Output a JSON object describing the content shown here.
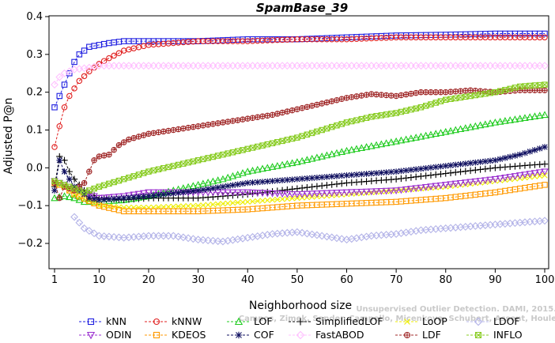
{
  "chart_data": {
    "type": "line",
    "title": "SpamBase_39",
    "xlabel": "Neighborhood size",
    "ylabel": "Adjusted P@n",
    "xlim": [
      1,
      100
    ],
    "ylim": [
      -0.25,
      0.4
    ],
    "xticks": [
      1,
      10,
      20,
      30,
      40,
      50,
      60,
      70,
      80,
      90,
      100
    ],
    "yticks": [
      -0.2,
      -0.1,
      0.0,
      0.1,
      0.2,
      0.3,
      0.4
    ],
    "ytick_labels": [
      "−0.2",
      "−0.1",
      "0.0",
      "0.1",
      "0.2",
      "0.3",
      "0.4"
    ],
    "grid": false,
    "legend_position": "bottom",
    "watermark": [
      "Unsupervised Outlier Detection. DAMI, 2015.",
      "Campos, Zimek, Sander, Campello, Micenkova, Schubert, Assent, Houle"
    ],
    "series": [
      {
        "name": "kNN",
        "color": "#1f1fe0",
        "marker": "square",
        "points": [
          [
            1,
            0.16
          ],
          [
            2,
            0.19
          ],
          [
            3,
            0.22
          ],
          [
            4,
            0.25
          ],
          [
            5,
            0.28
          ],
          [
            6,
            0.3
          ],
          [
            8,
            0.32
          ],
          [
            10,
            0.325
          ],
          [
            12,
            0.33
          ],
          [
            15,
            0.335
          ],
          [
            20,
            0.335
          ],
          [
            30,
            0.335
          ],
          [
            40,
            0.34
          ],
          [
            50,
            0.34
          ],
          [
            60,
            0.345
          ],
          [
            70,
            0.35
          ],
          [
            80,
            0.352
          ],
          [
            90,
            0.355
          ],
          [
            100,
            0.355
          ]
        ]
      },
      {
        "name": "kNNW",
        "color": "#e02020",
        "marker": "circle",
        "points": [
          [
            1,
            0.055
          ],
          [
            2,
            0.11
          ],
          [
            3,
            0.16
          ],
          [
            4,
            0.19
          ],
          [
            5,
            0.21
          ],
          [
            6,
            0.23
          ],
          [
            8,
            0.255
          ],
          [
            10,
            0.275
          ],
          [
            12,
            0.29
          ],
          [
            15,
            0.31
          ],
          [
            20,
            0.325
          ],
          [
            25,
            0.33
          ],
          [
            30,
            0.335
          ],
          [
            40,
            0.335
          ],
          [
            50,
            0.34
          ],
          [
            60,
            0.34
          ],
          [
            70,
            0.345
          ],
          [
            80,
            0.345
          ],
          [
            90,
            0.345
          ],
          [
            100,
            0.345
          ]
        ]
      },
      {
        "name": "LOF",
        "color": "#22cc22",
        "marker": "triangle",
        "points": [
          [
            1,
            -0.08
          ],
          [
            3,
            -0.075
          ],
          [
            5,
            -0.08
          ],
          [
            7,
            -0.09
          ],
          [
            10,
            -0.09
          ],
          [
            15,
            -0.085
          ],
          [
            20,
            -0.075
          ],
          [
            25,
            -0.06
          ],
          [
            30,
            -0.045
          ],
          [
            35,
            -0.03
          ],
          [
            40,
            -0.01
          ],
          [
            50,
            0.015
          ],
          [
            60,
            0.045
          ],
          [
            70,
            0.07
          ],
          [
            80,
            0.095
          ],
          [
            90,
            0.12
          ],
          [
            100,
            0.14
          ]
        ]
      },
      {
        "name": "SimplifiedLOF",
        "color": "#000000",
        "marker": "plus",
        "points": [
          [
            1,
            -0.05
          ],
          [
            2,
            0.03
          ],
          [
            3,
            0.02
          ],
          [
            4,
            -0.01
          ],
          [
            5,
            -0.03
          ],
          [
            7,
            -0.06
          ],
          [
            10,
            -0.08
          ],
          [
            15,
            -0.085
          ],
          [
            20,
            -0.08
          ],
          [
            30,
            -0.08
          ],
          [
            40,
            -0.07
          ],
          [
            50,
            -0.055
          ],
          [
            60,
            -0.04
          ],
          [
            70,
            -0.03
          ],
          [
            80,
            -0.015
          ],
          [
            90,
            0.0
          ],
          [
            100,
            0.01
          ]
        ]
      },
      {
        "name": "LoOP",
        "color": "#eeee00",
        "marker": "x",
        "points": [
          [
            1,
            -0.04
          ],
          [
            3,
            -0.05
          ],
          [
            5,
            -0.07
          ],
          [
            10,
            -0.1
          ],
          [
            15,
            -0.105
          ],
          [
            20,
            -0.105
          ],
          [
            30,
            -0.1
          ],
          [
            40,
            -0.09
          ],
          [
            50,
            -0.08
          ],
          [
            60,
            -0.07
          ],
          [
            70,
            -0.06
          ],
          [
            80,
            -0.05
          ],
          [
            90,
            -0.035
          ],
          [
            100,
            -0.02
          ]
        ]
      },
      {
        "name": "LDOF",
        "color": "#b4b4e8",
        "marker": "diamond",
        "points": [
          [
            5,
            -0.13
          ],
          [
            7,
            -0.16
          ],
          [
            10,
            -0.18
          ],
          [
            15,
            -0.185
          ],
          [
            20,
            -0.18
          ],
          [
            25,
            -0.18
          ],
          [
            30,
            -0.19
          ],
          [
            35,
            -0.195
          ],
          [
            40,
            -0.185
          ],
          [
            45,
            -0.175
          ],
          [
            50,
            -0.17
          ],
          [
            55,
            -0.18
          ],
          [
            60,
            -0.19
          ],
          [
            65,
            -0.18
          ],
          [
            70,
            -0.175
          ],
          [
            75,
            -0.165
          ],
          [
            80,
            -0.16
          ],
          [
            85,
            -0.155
          ],
          [
            90,
            -0.15
          ],
          [
            95,
            -0.145
          ],
          [
            100,
            -0.14
          ]
        ]
      },
      {
        "name": "ODIN",
        "color": "#9b30d0",
        "marker": "triangle-down",
        "points": [
          [
            1,
            -0.035
          ],
          [
            3,
            -0.045
          ],
          [
            5,
            -0.055
          ],
          [
            10,
            -0.08
          ],
          [
            15,
            -0.075
          ],
          [
            20,
            -0.065
          ],
          [
            30,
            -0.065
          ],
          [
            40,
            -0.065
          ],
          [
            50,
            -0.07
          ],
          [
            60,
            -0.065
          ],
          [
            70,
            -0.06
          ],
          [
            80,
            -0.045
          ],
          [
            90,
            -0.03
          ],
          [
            100,
            -0.01
          ]
        ]
      },
      {
        "name": "KDEOS",
        "color": "#ff9900",
        "marker": "square",
        "points": [
          [
            1,
            -0.04
          ],
          [
            3,
            -0.05
          ],
          [
            5,
            -0.07
          ],
          [
            10,
            -0.1
          ],
          [
            15,
            -0.115
          ],
          [
            20,
            -0.115
          ],
          [
            30,
            -0.115
          ],
          [
            40,
            -0.11
          ],
          [
            50,
            -0.1
          ],
          [
            60,
            -0.095
          ],
          [
            70,
            -0.09
          ],
          [
            80,
            -0.08
          ],
          [
            90,
            -0.065
          ],
          [
            100,
            -0.045
          ]
        ]
      },
      {
        "name": "COF",
        "color": "#101060",
        "marker": "star",
        "points": [
          [
            1,
            -0.06
          ],
          [
            2,
            0.02
          ],
          [
            3,
            -0.01
          ],
          [
            5,
            -0.05
          ],
          [
            8,
            -0.08
          ],
          [
            10,
            -0.085
          ],
          [
            15,
            -0.08
          ],
          [
            20,
            -0.075
          ],
          [
            30,
            -0.06
          ],
          [
            40,
            -0.04
          ],
          [
            50,
            -0.03
          ],
          [
            60,
            -0.02
          ],
          [
            70,
            -0.01
          ],
          [
            80,
            0.005
          ],
          [
            90,
            0.02
          ],
          [
            95,
            0.035
          ],
          [
            100,
            0.055
          ]
        ]
      },
      {
        "name": "FastABOD",
        "color": "#ffc0ff",
        "marker": "diamond",
        "points": [
          [
            1,
            0.22
          ],
          [
            2,
            0.24
          ],
          [
            3,
            0.25
          ],
          [
            5,
            0.26
          ],
          [
            8,
            0.265
          ],
          [
            10,
            0.27
          ],
          [
            20,
            0.27
          ],
          [
            30,
            0.27
          ],
          [
            40,
            0.27
          ],
          [
            50,
            0.27
          ],
          [
            60,
            0.27
          ],
          [
            70,
            0.27
          ],
          [
            80,
            0.27
          ],
          [
            90,
            0.27
          ],
          [
            100,
            0.27
          ]
        ]
      },
      {
        "name": "LDF",
        "color": "#a02828",
        "marker": "circle-plus",
        "points": [
          [
            1,
            -0.04
          ],
          [
            2,
            -0.08
          ],
          [
            3,
            -0.05
          ],
          [
            5,
            -0.06
          ],
          [
            7,
            -0.04
          ],
          [
            9,
            0.02
          ],
          [
            10,
            0.03
          ],
          [
            12,
            0.035
          ],
          [
            14,
            0.06
          ],
          [
            16,
            0.075
          ],
          [
            20,
            0.09
          ],
          [
            25,
            0.1
          ],
          [
            30,
            0.11
          ],
          [
            35,
            0.12
          ],
          [
            40,
            0.13
          ],
          [
            45,
            0.14
          ],
          [
            50,
            0.155
          ],
          [
            55,
            0.17
          ],
          [
            60,
            0.185
          ],
          [
            65,
            0.195
          ],
          [
            70,
            0.19
          ],
          [
            75,
            0.2
          ],
          [
            80,
            0.2
          ],
          [
            85,
            0.205
          ],
          [
            90,
            0.2
          ],
          [
            95,
            0.205
          ],
          [
            100,
            0.205
          ]
        ]
      },
      {
        "name": "INFLO",
        "color": "#88cc22",
        "marker": "hash-square",
        "points": [
          [
            1,
            -0.035
          ],
          [
            3,
            -0.045
          ],
          [
            5,
            -0.055
          ],
          [
            7,
            -0.065
          ],
          [
            10,
            -0.05
          ],
          [
            15,
            -0.03
          ],
          [
            20,
            -0.01
          ],
          [
            25,
            0.005
          ],
          [
            30,
            0.02
          ],
          [
            35,
            0.035
          ],
          [
            40,
            0.05
          ],
          [
            45,
            0.065
          ],
          [
            50,
            0.08
          ],
          [
            55,
            0.1
          ],
          [
            60,
            0.12
          ],
          [
            65,
            0.135
          ],
          [
            70,
            0.145
          ],
          [
            75,
            0.16
          ],
          [
            80,
            0.18
          ],
          [
            85,
            0.19
          ],
          [
            90,
            0.2
          ],
          [
            95,
            0.215
          ],
          [
            100,
            0.22
          ]
        ]
      }
    ]
  }
}
